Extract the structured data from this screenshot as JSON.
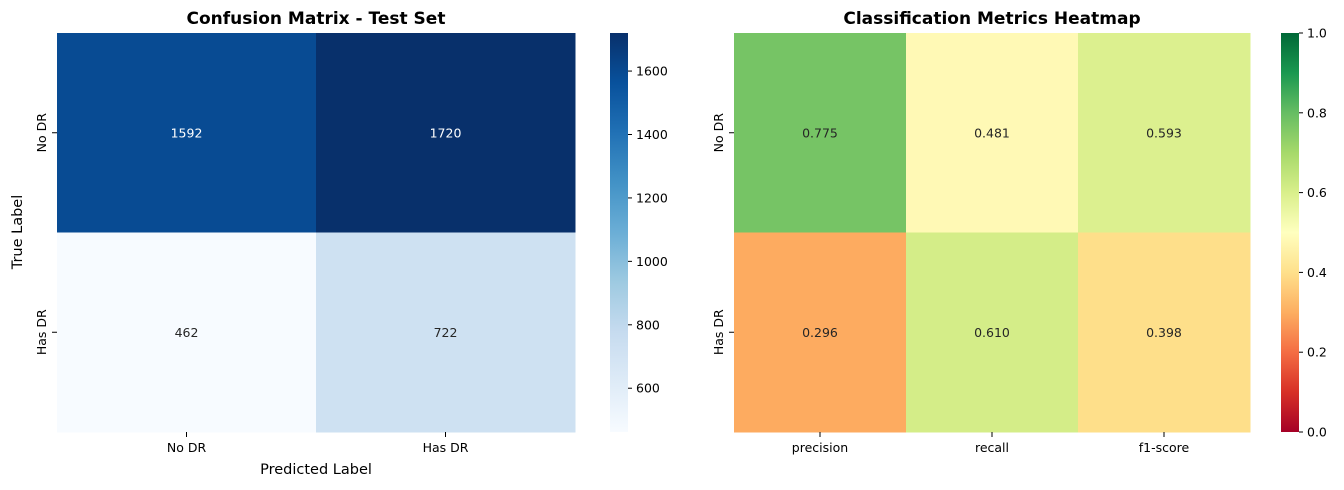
{
  "chart_data": [
    {
      "type": "heatmap",
      "title": "Confusion Matrix - Test Set",
      "xlabel": "Predicted Label",
      "ylabel": "True Label",
      "x_categories": [
        "No DR",
        "Has DR"
      ],
      "y_categories": [
        "No DR",
        "Has DR"
      ],
      "values": [
        [
          1592,
          1720
        ],
        [
          462,
          722
        ]
      ],
      "cell_labels": [
        [
          "1592",
          "1720"
        ],
        [
          "462",
          "722"
        ]
      ],
      "colormap": "Blues",
      "colorbar": {
        "range": [
          462,
          1720
        ],
        "ticks": [
          600,
          800,
          1000,
          1200,
          1400,
          1600
        ],
        "tick_labels": [
          "600",
          "800",
          "1000",
          "1200",
          "1400",
          "1600"
        ]
      }
    },
    {
      "type": "heatmap",
      "title": "Classification Metrics Heatmap",
      "xlabel": "",
      "ylabel": "",
      "x_categories": [
        "precision",
        "recall",
        "f1-score"
      ],
      "y_categories": [
        "No DR",
        "Has DR"
      ],
      "values": [
        [
          0.775,
          0.481,
          0.593
        ],
        [
          0.296,
          0.61,
          0.398
        ]
      ],
      "cell_labels": [
        [
          "0.775",
          "0.481",
          "0.593"
        ],
        [
          "0.296",
          "0.610",
          "0.398"
        ]
      ],
      "colormap": "RdYlGn",
      "colorbar": {
        "range": [
          0,
          1
        ],
        "ticks": [
          0.0,
          0.2,
          0.4,
          0.6,
          0.8,
          1.0
        ],
        "tick_labels": [
          "0.0",
          "0.2",
          "0.4",
          "0.6",
          "0.8",
          "1.0"
        ]
      }
    }
  ]
}
